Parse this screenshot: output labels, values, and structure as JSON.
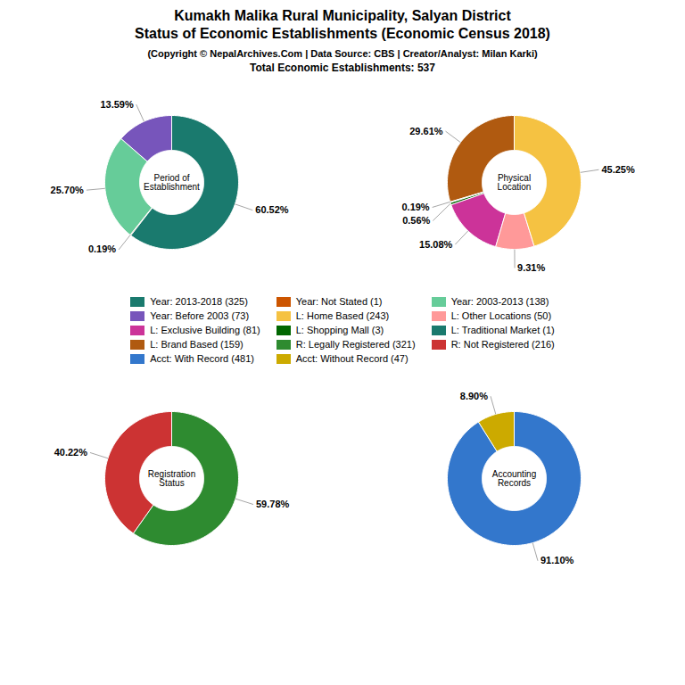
{
  "title": "Kumakh Malika Rural Municipality, Salyan District\nStatus of Economic Establishments (Economic Census 2018)",
  "subtitle": "(Copyright © NepalArchives.Com | Data Source: CBS | Creator/Analyst: Milan Karki)",
  "annotations": [
    "Total Economic Establishments: 537"
  ],
  "chart_data": [
    {
      "type": "donut",
      "title": "Period of\nEstablishment",
      "categories": [
        "Year: 2013-2018 (325)",
        "Year: Not Stated (1)",
        "Year: 2003-2013 (138)",
        "Year: Before 2003 (73)"
      ],
      "values": [
        60.52,
        0.19,
        25.7,
        13.59
      ],
      "value_labels": [
        "60.52%",
        "0.19%",
        "25.70%",
        "13.59%"
      ],
      "colors": [
        "#1a7a6e",
        "#cc5500",
        "#66cc99",
        "#7755bb"
      ],
      "data_labels": true,
      "legend": "center"
    },
    {
      "type": "donut",
      "title": "Physical\nLocation",
      "categories": [
        "L: Home Based (243)",
        "L: Other Locations (50)",
        "L: Exclusive Building (81)",
        "L: Shopping Mall (3)",
        "L: Traditional Market (1)",
        "L: Brand Based (159)"
      ],
      "values": [
        45.25,
        9.31,
        15.08,
        0.56,
        0.19,
        29.61
      ],
      "value_labels": [
        "45.25%",
        "9.31%",
        "15.08%",
        "0.56%",
        "0.19%",
        "29.61%"
      ],
      "colors": [
        "#f5c242",
        "#ff9999",
        "#cc3399",
        "#006600",
        "#1a7a6e",
        "#b05a10"
      ],
      "data_labels": true,
      "legend": "center"
    },
    {
      "type": "donut",
      "title": "Registration\nStatus",
      "categories": [
        "R: Legally Registered (321)",
        "R: Not Registered (216)"
      ],
      "values": [
        59.78,
        40.22
      ],
      "value_labels": [
        "59.78%",
        "40.22%"
      ],
      "colors": [
        "#2e8b30",
        "#cc3333"
      ],
      "data_labels": true,
      "legend": "center"
    },
    {
      "type": "donut",
      "title": "Accounting\nRecords",
      "categories": [
        "Acct: With Record (481)",
        "Acct: Without Record (47)"
      ],
      "values": [
        91.1,
        8.9
      ],
      "value_labels": [
        "91.10%",
        "8.90%"
      ],
      "colors": [
        "#3377cc",
        "#ccaa00"
      ],
      "data_labels": true,
      "legend": "center"
    }
  ]
}
